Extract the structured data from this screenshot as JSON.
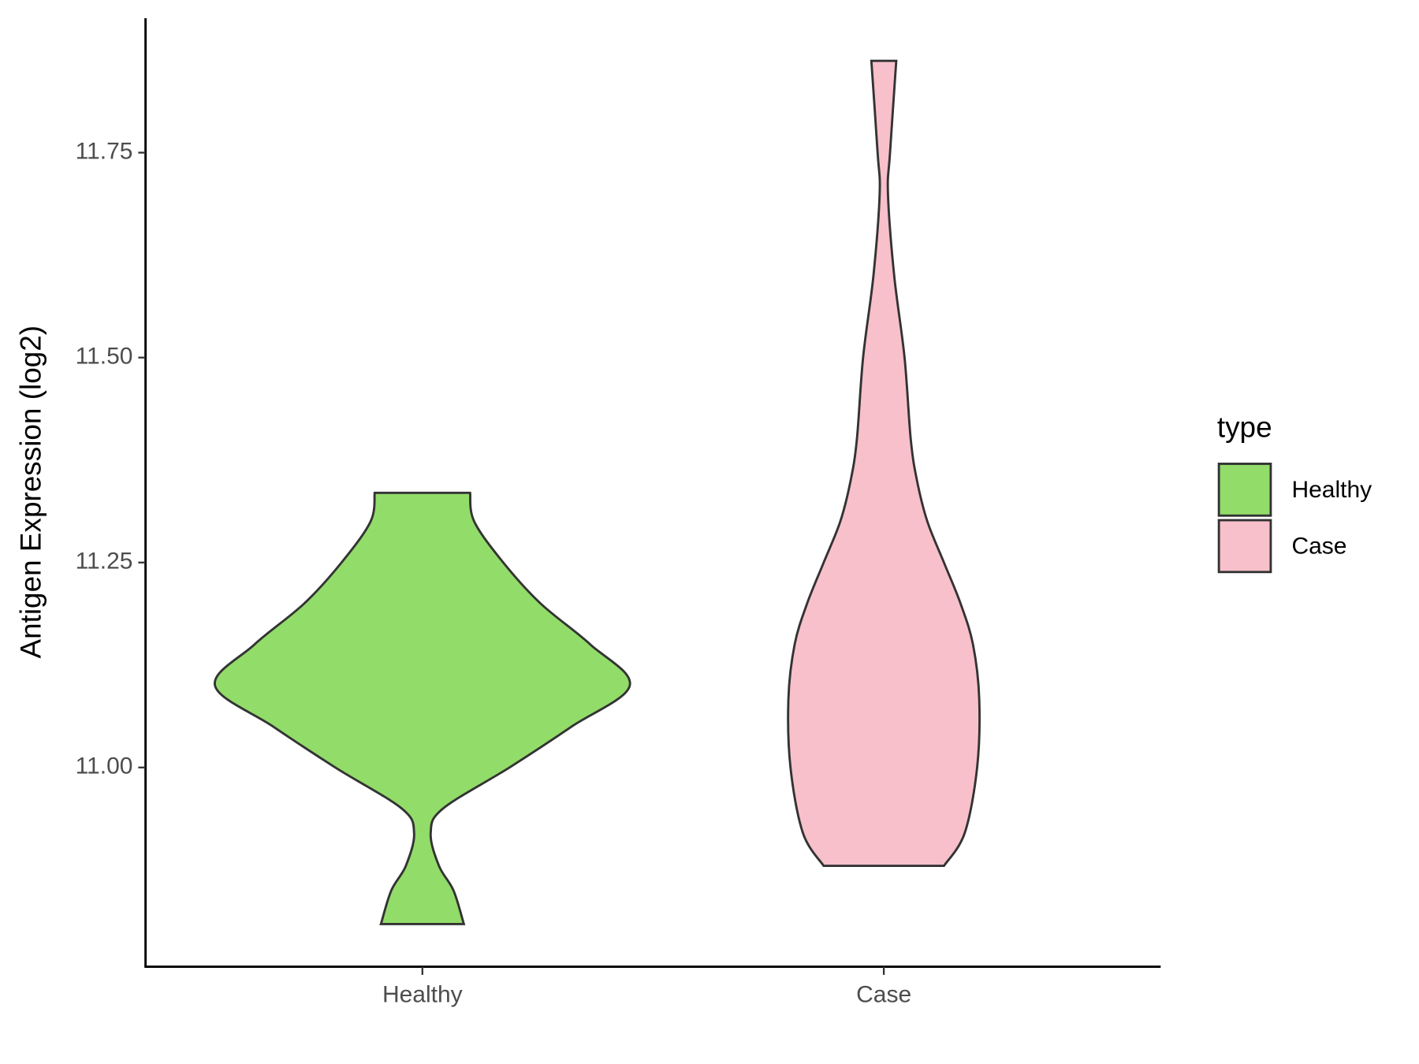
{
  "chart_data": {
    "type": "violin",
    "y_label": "Antigen Expression (log2)",
    "categories": [
      "Healthy",
      "Case"
    ],
    "legend_title": "type",
    "legend_position": "right",
    "ylim": [
      10.757,
      11.914
    ],
    "yticks": [
      {
        "value": 11.0,
        "label": "11.00"
      },
      {
        "value": 11.25,
        "label": "11.25"
      },
      {
        "value": 11.5,
        "label": "11.50"
      },
      {
        "value": 11.75,
        "label": "11.75"
      }
    ],
    "grid": false,
    "series": [
      {
        "name": "Healthy",
        "color": "#92dc6a",
        "y": [
          10.809,
          10.85,
          10.88,
          10.92,
          10.95,
          11.0,
          11.05,
          11.1,
          11.15,
          11.2,
          11.25,
          11.3,
          11.335
        ],
        "width": [
          0.2,
          0.15,
          0.08,
          0.04,
          0.1,
          0.42,
          0.72,
          1.0,
          0.81,
          0.57,
          0.39,
          0.25,
          0.23
        ]
      },
      {
        "name": "Case",
        "color": "#f8c0cb",
        "y": [
          10.88,
          10.92,
          11.0,
          11.084,
          11.15,
          11.2,
          11.25,
          11.3,
          11.35,
          11.4,
          11.5,
          11.6,
          11.7,
          11.75,
          11.862
        ],
        "width": [
          0.29,
          0.39,
          0.45,
          0.46,
          0.43,
          0.37,
          0.29,
          0.21,
          0.16,
          0.13,
          0.1,
          0.05,
          0.02,
          0.03,
          0.06
        ]
      }
    ]
  }
}
